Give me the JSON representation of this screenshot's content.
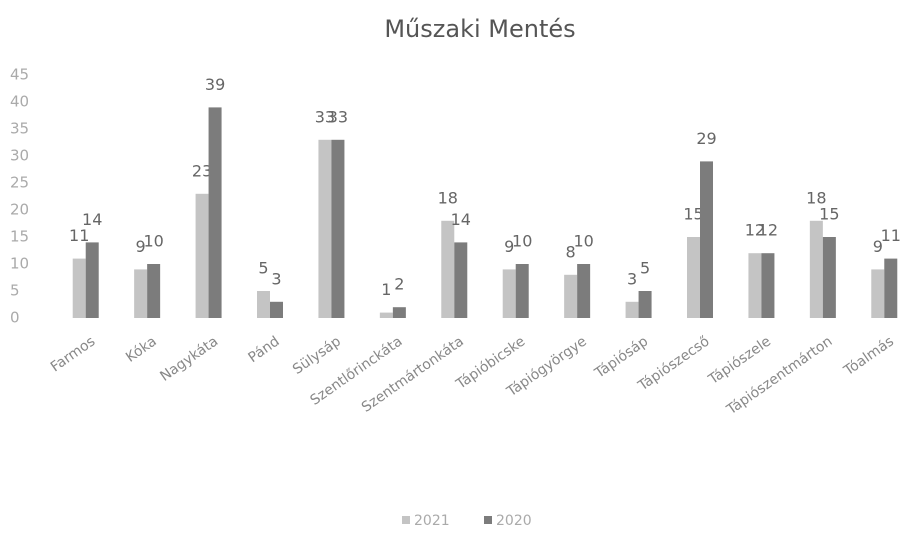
{
  "chart_data": {
    "type": "bar",
    "title": "Műszaki Mentés",
    "categories": [
      "Farmos",
      "Kóka",
      "Nagykáta",
      "Pánd",
      "Sülysáp",
      "Szentlőrinckáta",
      "Szentmártonkáta",
      "Tápióbicske",
      "Tápiógyörgye",
      "Tápiósáp",
      "Tápiószecső",
      "Tápiószele",
      "Tápiószentmárton",
      "Tóalmás"
    ],
    "series": [
      {
        "name": "2021",
        "color": "#c4c4c4",
        "values": [
          11,
          9,
          23,
          5,
          33,
          1,
          18,
          9,
          8,
          3,
          15,
          12,
          18,
          9
        ]
      },
      {
        "name": "2020",
        "color": "#7c7c7c",
        "values": [
          14,
          10,
          39,
          3,
          33,
          2,
          14,
          10,
          10,
          5,
          29,
          12,
          15,
          11
        ]
      }
    ],
    "ylim": [
      0,
      45
    ],
    "yticks": [
      0,
      5,
      10,
      15,
      20,
      25,
      30,
      35,
      40,
      45
    ],
    "grid": false,
    "legend": "bottom"
  }
}
